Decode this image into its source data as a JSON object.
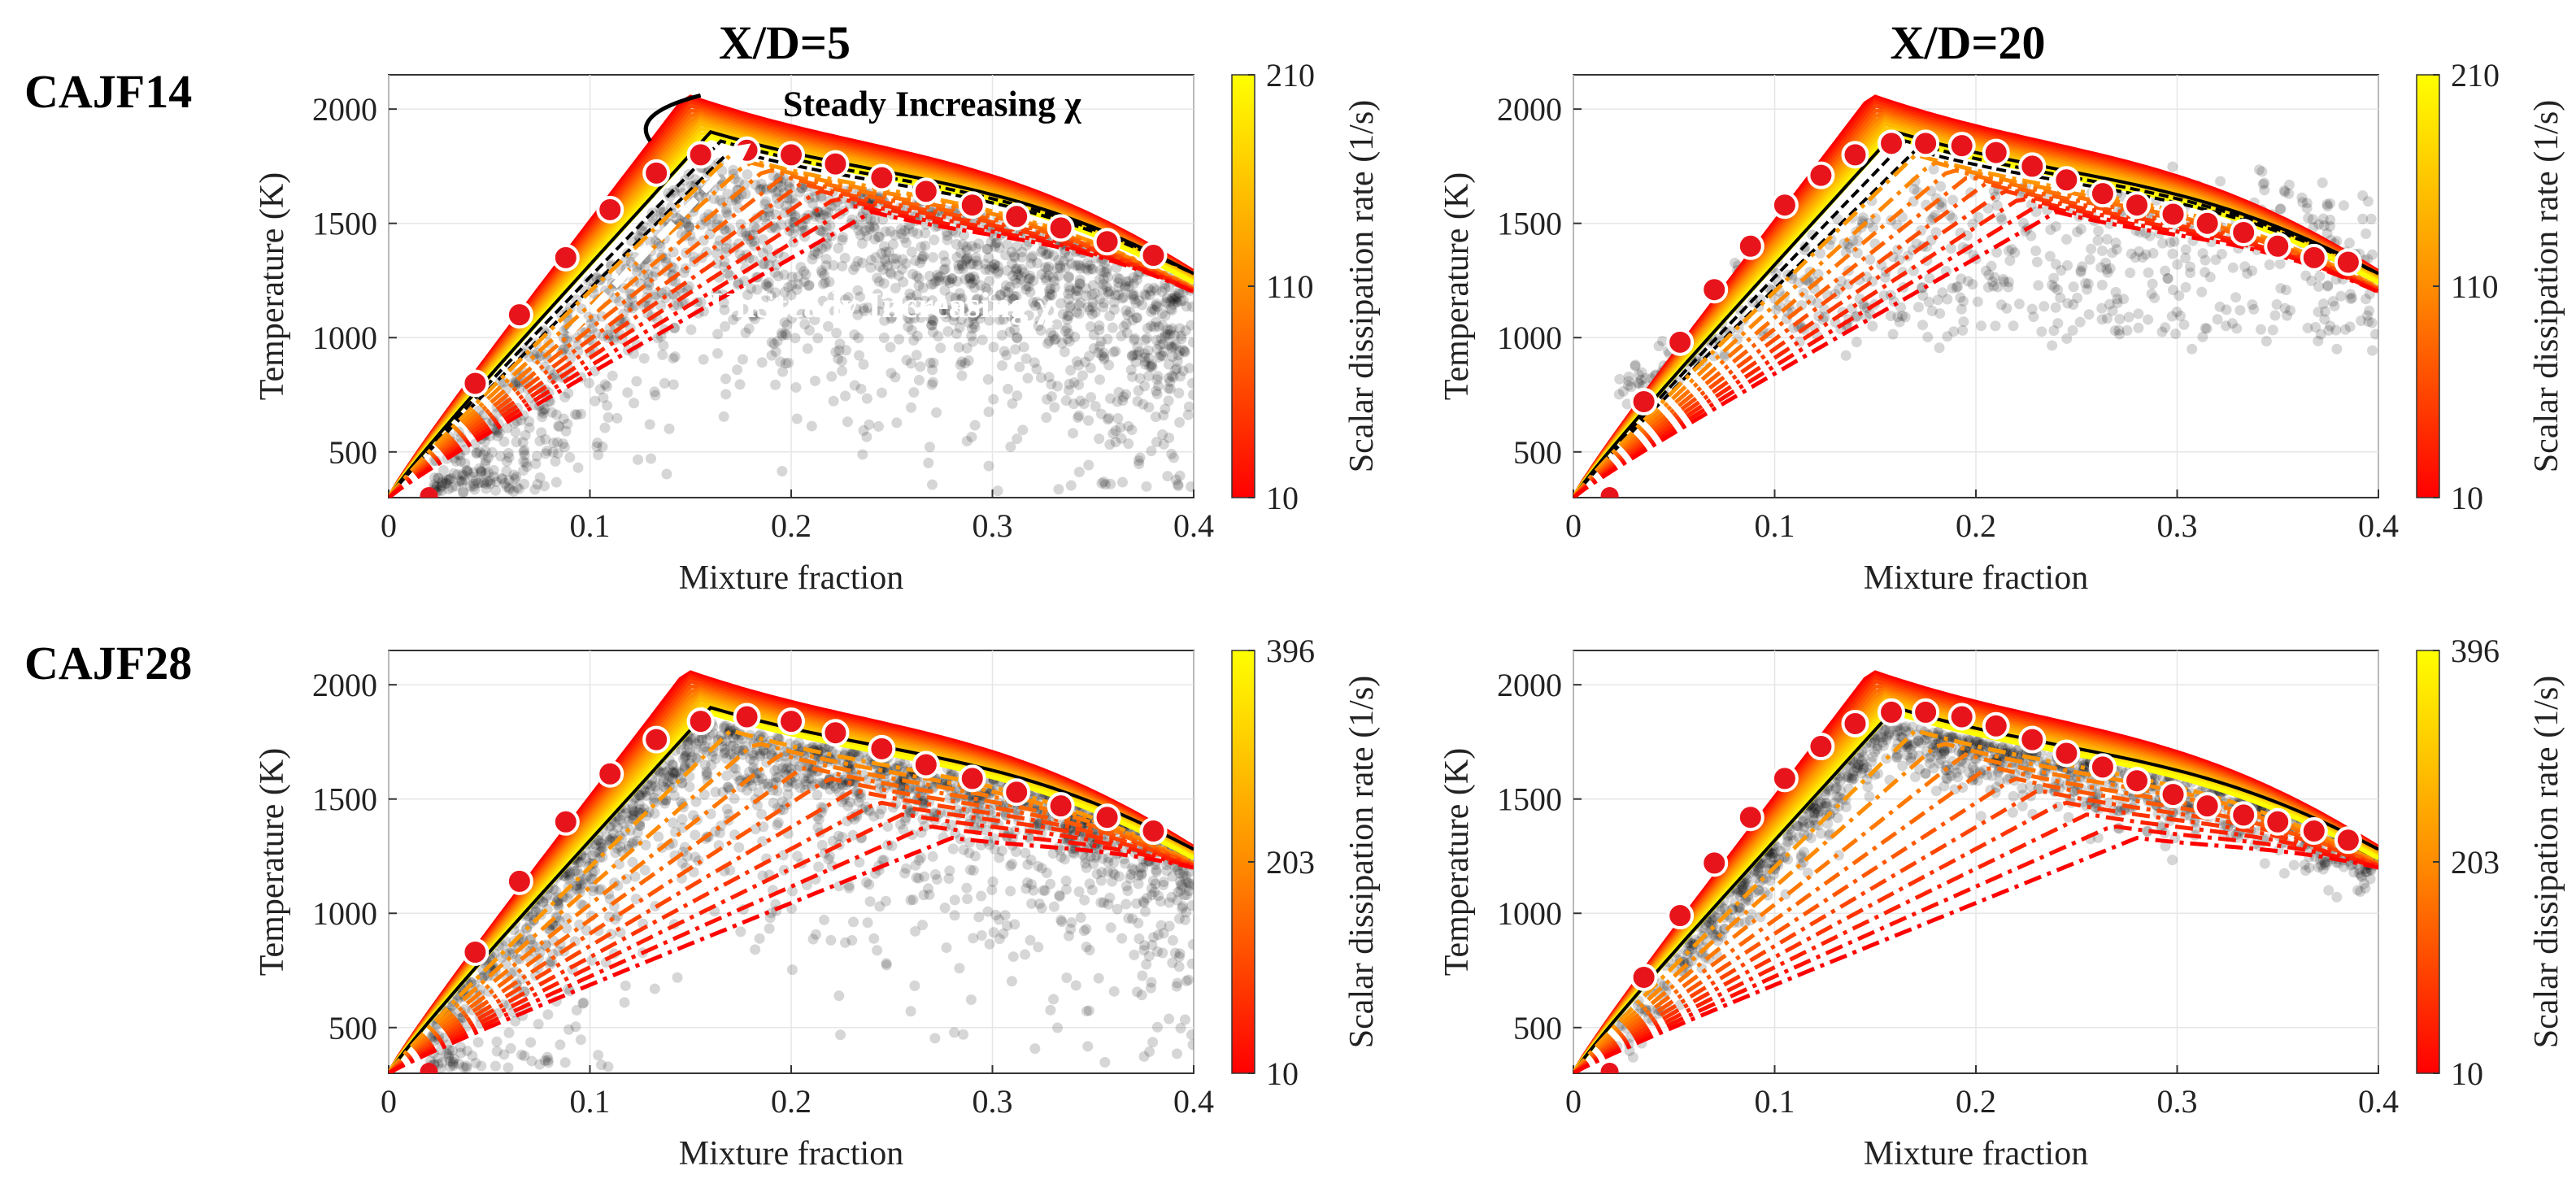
{
  "figure": {
    "column_titles": [
      "X/D=5",
      "X/D=20"
    ],
    "row_titles": [
      "CAJF14",
      "CAJF28"
    ]
  },
  "chart_data": [
    {
      "type": "scatter",
      "case": "CAJF14",
      "title": "X/D=5",
      "xlabel": "Mixture fraction",
      "ylabel": "Temperature (K)",
      "xlim": [
        0,
        0.4
      ],
      "ylim": [
        300,
        2150
      ],
      "xticks": [
        "0",
        "0.1",
        "0.2",
        "0.3",
        "0.4"
      ],
      "yticks": [
        "500",
        "1000",
        "1500",
        "2000"
      ],
      "colorbar": {
        "label": "Scalar dissipation rate  (1/s)",
        "min": 10,
        "max": 210,
        "ticks": [
          "10",
          "110",
          "210"
        ]
      },
      "annotations": [
        "Steady Increasing χ",
        "UnSteady Increasing χ"
      ],
      "scatter_cloud": {
        "description_range_T": [
          700,
          1950
        ],
        "density": "very dense"
      },
      "conditional_mean_markers": {
        "x": [
          0.02,
          0.043,
          0.065,
          0.088,
          0.11,
          0.133,
          0.155,
          0.178,
          0.2,
          0.222,
          0.245,
          0.267,
          0.29,
          0.312,
          0.334,
          0.357,
          0.38
        ],
        "y": [
          300,
          800,
          1100,
          1350,
          1560,
          1720,
          1800,
          1820,
          1800,
          1760,
          1700,
          1640,
          1580,
          1530,
          1480,
          1420,
          1360
        ]
      }
    },
    {
      "type": "scatter",
      "case": "CAJF14",
      "title": "X/D=20",
      "xlabel": "Mixture fraction",
      "ylabel": "Temperature (K)",
      "xlim": [
        0,
        0.4
      ],
      "ylim": [
        300,
        2150
      ],
      "xticks": [
        "0",
        "0.1",
        "0.2",
        "0.3",
        "0.4"
      ],
      "yticks": [
        "500",
        "1000",
        "1500",
        "2000"
      ],
      "colorbar": {
        "label": "Scalar dissipation rate  (1/s)",
        "min": 10,
        "max": 210,
        "ticks": [
          "10",
          "110",
          "210"
        ]
      },
      "scatter_cloud": {
        "description_range_T": [
          900,
          1700
        ],
        "density": "sparse"
      },
      "conditional_mean_markers": {
        "x": [
          0.018,
          0.035,
          0.053,
          0.07,
          0.088,
          0.105,
          0.123,
          0.14,
          0.158,
          0.175,
          0.193,
          0.21,
          0.228,
          0.245,
          0.263,
          0.28,
          0.298,
          0.315,
          0.333,
          0.35,
          0.368,
          0.385
        ],
        "y": [
          300,
          720,
          980,
          1210,
          1400,
          1580,
          1710,
          1800,
          1850,
          1850,
          1840,
          1810,
          1750,
          1690,
          1630,
          1580,
          1540,
          1500,
          1460,
          1400,
          1350,
          1330
        ]
      }
    },
    {
      "type": "scatter",
      "case": "CAJF28",
      "title": "X/D=5",
      "xlabel": "Mixture fraction",
      "ylabel": "Temperature (K)",
      "xlim": [
        0,
        0.4
      ],
      "ylim": [
        300,
        2150
      ],
      "xticks": [
        "0",
        "0.1",
        "0.2",
        "0.3",
        "0.4"
      ],
      "yticks": [
        "500",
        "1000",
        "1500",
        "2000"
      ],
      "colorbar": {
        "label": "Scalar dissipation rate  (1/s)",
        "min": 10,
        "max": 396,
        "ticks": [
          "10",
          "203",
          "396"
        ]
      },
      "scatter_cloud": {
        "description_range_T": [
          700,
          1900
        ],
        "density": "dense near equilibrium"
      },
      "conditional_mean_markers": {
        "x": [
          0.02,
          0.043,
          0.065,
          0.088,
          0.11,
          0.133,
          0.155,
          0.178,
          0.2,
          0.222,
          0.245,
          0.267,
          0.29,
          0.312,
          0.334,
          0.357,
          0.38
        ],
        "y": [
          300,
          830,
          1140,
          1400,
          1610,
          1760,
          1840,
          1860,
          1840,
          1790,
          1720,
          1650,
          1590,
          1530,
          1470,
          1420,
          1360
        ]
      }
    },
    {
      "type": "scatter",
      "case": "CAJF28",
      "title": "X/D=20",
      "xlabel": "Mixture fraction",
      "ylabel": "Temperature (K)",
      "xlim": [
        0,
        0.4
      ],
      "ylim": [
        300,
        2150
      ],
      "xticks": [
        "0",
        "0.1",
        "0.2",
        "0.3",
        "0.4"
      ],
      "yticks": [
        "500",
        "1000",
        "1500",
        "2000"
      ],
      "colorbar": {
        "label": "Scalar dissipation rate  (1/s)",
        "min": 10,
        "max": 396,
        "ticks": [
          "10",
          "203",
          "396"
        ]
      },
      "scatter_cloud": {
        "description_range_T": [
          1300,
          1900
        ],
        "density": "dense band"
      },
      "conditional_mean_markers": {
        "x": [
          0.018,
          0.035,
          0.053,
          0.07,
          0.088,
          0.105,
          0.123,
          0.14,
          0.158,
          0.175,
          0.193,
          0.21,
          0.228,
          0.245,
          0.263,
          0.28,
          0.298,
          0.315,
          0.333,
          0.35,
          0.368,
          0.385
        ],
        "y": [
          300,
          720,
          990,
          1220,
          1420,
          1590,
          1730,
          1830,
          1880,
          1880,
          1860,
          1820,
          1760,
          1700,
          1640,
          1580,
          1520,
          1470,
          1430,
          1400,
          1360,
          1320
        ]
      }
    }
  ],
  "colors": {
    "cmap_low": "#ff0000",
    "cmap_mid": "#ff8c00",
    "cmap_high": "#ffff00",
    "marker_fill": "#e8141c",
    "scatter": "#000000"
  }
}
